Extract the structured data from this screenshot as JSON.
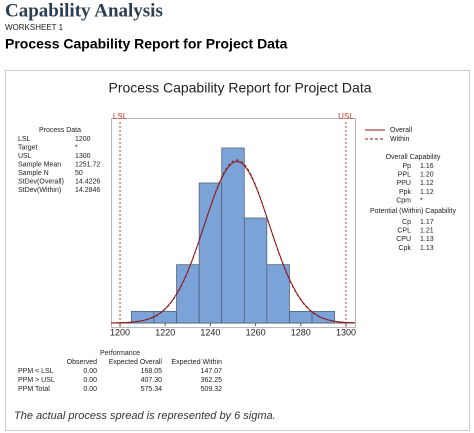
{
  "header": {
    "title": "Capability Analysis",
    "worksheet": "WORKSHEET 1",
    "heading": "Process Capability Report for Project Data"
  },
  "chart_data": {
    "type": "histogram",
    "title": "Process Capability Report for Project Data",
    "bins": [
      1205,
      1215,
      1225,
      1235,
      1245,
      1255,
      1265,
      1275,
      1285,
      1295
    ],
    "values": [
      1,
      1,
      5,
      12,
      15,
      9,
      5,
      1,
      1
    ],
    "color": "#7ba3d8",
    "xlim": [
      1196,
      1304
    ],
    "xticks": [
      1200,
      1220,
      1240,
      1260,
      1280,
      1300
    ],
    "ylim": [
      0,
      16
    ],
    "spec_labels": [
      "LSL",
      "USL"
    ],
    "spec_color": "#c0392b",
    "series": [
      {
        "name": "Overall",
        "color": "#8b1a1a",
        "style": "solid"
      },
      {
        "name": "Within",
        "color": "#8b1a1a",
        "style": "dashed"
      }
    ]
  },
  "process_data": {
    "title": "Process Data",
    "rows": [
      [
        "LSL",
        1200
      ],
      [
        "Target",
        "*"
      ],
      [
        "USL",
        1300
      ],
      [
        "Sample Mean",
        1251.72
      ],
      [
        "Sample N",
        50
      ],
      [
        "StDev(Overall)",
        14.4226
      ],
      [
        "StDev(Within)",
        14.2846
      ]
    ]
  },
  "overall_capability": {
    "title": "Overall Capability",
    "rows": [
      [
        "Pp",
        "1.16"
      ],
      [
        "PPL",
        "1.20"
      ],
      [
        "PPU",
        "1.12"
      ],
      [
        "Ppk",
        "1.12"
      ],
      [
        "Cpm",
        "*"
      ]
    ]
  },
  "within_capability": {
    "title": "Potential (Within) Capability",
    "rows": [
      [
        "Cp",
        "1.17"
      ],
      [
        "CPL",
        "1.21"
      ],
      [
        "CPU",
        "1.13"
      ],
      [
        "Cpk",
        "1.13"
      ]
    ]
  },
  "performance": {
    "title": "Performance",
    "columns": [
      "Observed",
      "Expected Overall",
      "Expected Within"
    ],
    "rows": [
      {
        "label": "PPM < LSL",
        "values": [
          "0.00",
          "168.05",
          "147.07"
        ]
      },
      {
        "label": "PPM > USL",
        "values": [
          "0.00",
          "407.30",
          "362.25"
        ]
      },
      {
        "label": "PPM Total",
        "values": [
          "0.00",
          "575.34",
          "509.32"
        ]
      }
    ]
  },
  "footnote": "The actual process spread is represented by 6 sigma."
}
